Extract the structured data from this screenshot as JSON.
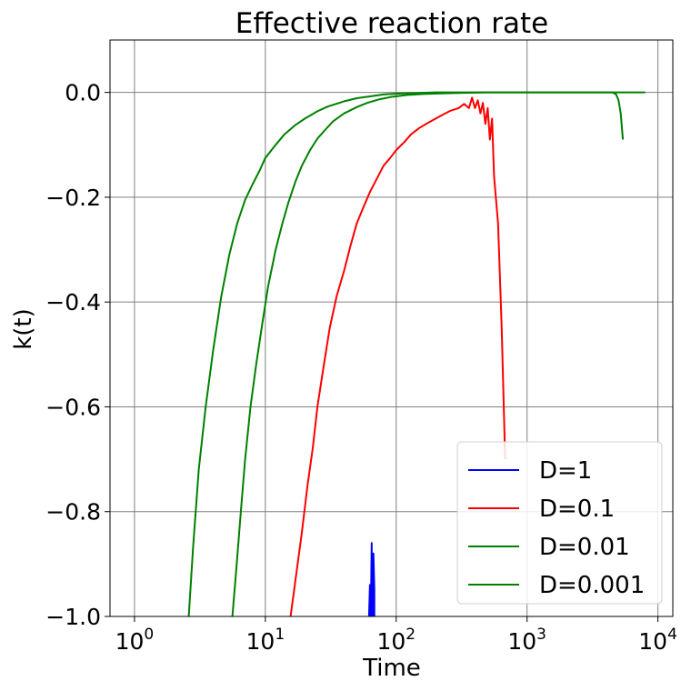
{
  "chart_data": {
    "type": "line",
    "title": "Effective reaction rate",
    "xlabel": "Time",
    "ylabel": "k(t)",
    "xscale": "log",
    "xlim": [
      0.65,
      13000
    ],
    "ylim": [
      -1.0,
      0.1
    ],
    "grid": true,
    "legend_position": "bottom-right",
    "x_ticks": [
      {
        "base": "10",
        "exp": "0",
        "value": 1
      },
      {
        "base": "10",
        "exp": "1",
        "value": 10
      },
      {
        "base": "10",
        "exp": "2",
        "value": 100
      },
      {
        "base": "10",
        "exp": "3",
        "value": 1000
      },
      {
        "base": "10",
        "exp": "4",
        "value": 10000
      }
    ],
    "y_ticks": [
      {
        "label": "0.0",
        "value": 0.0
      },
      {
        "label": "−0.2",
        "value": -0.2
      },
      {
        "label": "−0.4",
        "value": -0.4
      },
      {
        "label": "−0.6",
        "value": -0.6
      },
      {
        "label": "−0.8",
        "value": -0.8
      },
      {
        "label": "−1.0",
        "value": -1.0
      }
    ],
    "series": [
      {
        "name": "D=1",
        "color": "#0000ff",
        "x": [
          62,
          63,
          63,
          64,
          64,
          65,
          65,
          66,
          66,
          67,
          67,
          68,
          68
        ],
        "y": [
          -1.0,
          -0.94,
          -1.0,
          -0.96,
          -1.0,
          -0.86,
          -1.0,
          -0.92,
          -1.0,
          -0.9,
          -0.88,
          -0.95,
          -1.0
        ]
      },
      {
        "name": "D=0.1",
        "color": "#ff0000",
        "x": [
          15.6,
          17,
          19,
          21,
          23,
          25,
          28,
          31,
          35,
          40,
          45,
          50,
          56,
          63,
          71,
          80,
          90,
          100,
          115,
          130,
          150,
          175,
          200,
          230,
          260,
          300,
          330,
          360,
          380,
          400,
          420,
          440,
          460,
          480,
          500,
          520,
          540,
          560,
          600,
          640,
          680
        ],
        "y": [
          -1.0,
          -0.93,
          -0.84,
          -0.75,
          -0.68,
          -0.6,
          -0.52,
          -0.45,
          -0.39,
          -0.34,
          -0.29,
          -0.25,
          -0.22,
          -0.19,
          -0.165,
          -0.14,
          -0.125,
          -0.11,
          -0.095,
          -0.08,
          -0.068,
          -0.058,
          -0.05,
          -0.042,
          -0.035,
          -0.03,
          -0.022,
          -0.03,
          -0.01,
          -0.03,
          -0.015,
          -0.04,
          -0.02,
          -0.06,
          -0.03,
          -0.09,
          -0.05,
          -0.16,
          -0.25,
          -0.45,
          -0.7
        ]
      },
      {
        "name": "D=0.01",
        "color": "#008000",
        "x": [
          5.6,
          6,
          6.5,
          7,
          7.7,
          8.5,
          9.5,
          10.5,
          12,
          13.5,
          15,
          17,
          19,
          22,
          25,
          29,
          33,
          40,
          50,
          60,
          75,
          90,
          120,
          160,
          220,
          300,
          500,
          800,
          1200,
          2000,
          3000,
          4000,
          4500,
          4800,
          5000,
          5200,
          5400
        ],
        "y": [
          -1.0,
          -0.91,
          -0.8,
          -0.7,
          -0.6,
          -0.52,
          -0.44,
          -0.37,
          -0.3,
          -0.25,
          -0.21,
          -0.17,
          -0.14,
          -0.11,
          -0.088,
          -0.07,
          -0.055,
          -0.04,
          -0.028,
          -0.02,
          -0.013,
          -0.009,
          -0.005,
          -0.003,
          -0.002,
          -0.001,
          0.0,
          0.0,
          0.0,
          0.0,
          0.0,
          0.0,
          0.0,
          -0.004,
          -0.015,
          -0.04,
          -0.09
        ]
      },
      {
        "name": "D=0.001",
        "color": "#008000",
        "x": [
          2.6,
          2.8,
          3.1,
          3.5,
          4,
          4.6,
          5.3,
          6.1,
          7,
          8,
          9,
          10,
          12,
          14,
          17,
          20,
          25,
          30,
          40,
          50,
          65,
          80,
          110,
          150,
          200,
          300,
          500,
          800,
          1500,
          3000,
          5000,
          8000
        ],
        "y": [
          -1.0,
          -0.87,
          -0.72,
          -0.6,
          -0.49,
          -0.39,
          -0.31,
          -0.25,
          -0.205,
          -0.175,
          -0.15,
          -0.125,
          -0.1,
          -0.08,
          -0.062,
          -0.05,
          -0.036,
          -0.027,
          -0.017,
          -0.011,
          -0.007,
          -0.004,
          -0.002,
          -0.001,
          0.0,
          0.0,
          0.0,
          0.0,
          0.0,
          0.0,
          0.0,
          0.0
        ]
      }
    ]
  }
}
